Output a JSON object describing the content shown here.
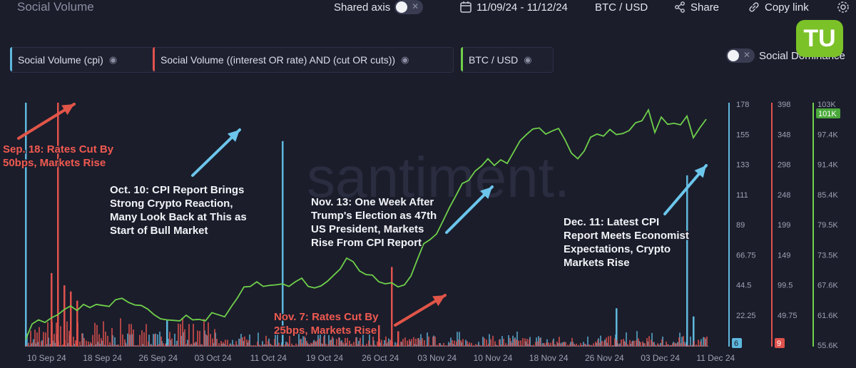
{
  "header": {
    "title": "Social Volume",
    "shared_axis_label": "Shared axis",
    "date_range": "11/09/24 - 11/12/24",
    "pair": "BTC / USD",
    "share_label": "Share",
    "copy_link_label": "Copy link"
  },
  "legend": {
    "items": [
      {
        "label": "Social Volume (cpi)",
        "color": "#5fb8dd"
      },
      {
        "label": "Social Volume ((interest OR rate) AND (cut OR cuts))",
        "color": "#e0524d"
      },
      {
        "label": "BTC / USD",
        "color": "#6fd04a"
      }
    ],
    "social_dominance_label": "Social Dominance"
  },
  "logo": {
    "text": "TU"
  },
  "watermark": "santiment.",
  "colors": {
    "background": "#1b1d2b",
    "cpi": "#5fb8dd",
    "rate": "#e0524d",
    "btc": "#6fd04a",
    "annotation_white": "#f2f3f7",
    "annotation_red": "#f05a50"
  },
  "chart_data": {
    "type": "line",
    "x_tick_labels": [
      "10 Sep 24",
      "18 Sep 24",
      "26 Sep 24",
      "03 Oct 24",
      "11 Oct 24",
      "19 Oct 24",
      "26 Oct 24",
      "03 Nov 24",
      "10 Nov 24",
      "18 Nov 24",
      "26 Nov 24",
      "03 Dec 24",
      "11 Dec 24"
    ],
    "axes": {
      "cpi": {
        "ticks": [
          "178",
          "155",
          "133",
          "111",
          "89",
          "66.75",
          "44.5",
          "22.25"
        ],
        "ylim": [
          0,
          178
        ],
        "current": "6"
      },
      "rate": {
        "ticks": [
          "398",
          "348",
          "298",
          "248",
          "199",
          "149",
          "99.5",
          "49.75"
        ],
        "ylim": [
          0,
          398
        ],
        "current": "9"
      },
      "btc": {
        "ticks": [
          "103K",
          "97.4K",
          "91.4K",
          "85.4K",
          "79.5K",
          "73.5K",
          "67.6K",
          "61.6K",
          "55.6K"
        ],
        "ylim": [
          55600,
          103000
        ],
        "current": "101K"
      }
    },
    "series": [
      {
        "name": "BTC / USD",
        "axis": "btc",
        "points": [
          [
            0,
            57000
          ],
          [
            1,
            60000
          ],
          [
            2,
            60800
          ],
          [
            3,
            60300
          ],
          [
            4,
            61200
          ],
          [
            5,
            61800
          ],
          [
            6,
            62800
          ],
          [
            7,
            63500
          ],
          [
            8,
            62600
          ],
          [
            9,
            63800
          ],
          [
            10,
            63200
          ],
          [
            11,
            63800
          ],
          [
            12,
            63600
          ],
          [
            13,
            63400
          ],
          [
            14,
            64700
          ],
          [
            15,
            65000
          ],
          [
            16,
            64200
          ],
          [
            17,
            63700
          ],
          [
            18,
            63600
          ],
          [
            19,
            62900
          ],
          [
            20,
            61800
          ],
          [
            21,
            61000
          ],
          [
            22,
            60800
          ],
          [
            23,
            60700
          ],
          [
            24,
            60600
          ],
          [
            25,
            61700
          ],
          [
            26,
            60800
          ],
          [
            27,
            60900
          ],
          [
            28,
            60600
          ],
          [
            29,
            62200
          ],
          [
            30,
            61800
          ],
          [
            31,
            61400
          ],
          [
            32,
            63300
          ],
          [
            33,
            65100
          ],
          [
            34,
            67200
          ],
          [
            35,
            67300
          ],
          [
            36,
            68200
          ],
          [
            37,
            67300
          ],
          [
            38,
            67500
          ],
          [
            39,
            67600
          ],
          [
            40,
            67800
          ],
          [
            41,
            67300
          ],
          [
            42,
            68200
          ],
          [
            43,
            68900
          ],
          [
            44,
            67300
          ],
          [
            45,
            67000
          ],
          [
            46,
            67400
          ],
          [
            47,
            68300
          ],
          [
            48,
            69500
          ],
          [
            49,
            70700
          ],
          [
            50,
            72800
          ],
          [
            51,
            72100
          ],
          [
            52,
            70300
          ],
          [
            53,
            69600
          ],
          [
            54,
            69500
          ],
          [
            55,
            68200
          ],
          [
            56,
            67800
          ],
          [
            57,
            68000
          ],
          [
            58,
            67200
          ],
          [
            59,
            67600
          ],
          [
            60,
            69300
          ],
          [
            61,
            72500
          ],
          [
            62,
            75600
          ],
          [
            63,
            76400
          ],
          [
            64,
            77500
          ],
          [
            65,
            80000
          ],
          [
            66,
            82600
          ],
          [
            67,
            84900
          ],
          [
            68,
            87300
          ],
          [
            69,
            87900
          ],
          [
            70,
            89700
          ],
          [
            71,
            90700
          ],
          [
            72,
            92100
          ],
          [
            73,
            90800
          ],
          [
            74,
            91900
          ],
          [
            75,
            91200
          ],
          [
            76,
            93400
          ],
          [
            77,
            95600
          ],
          [
            78,
            96800
          ],
          [
            79,
            97900
          ],
          [
            80,
            98100
          ],
          [
            81,
            96900
          ],
          [
            82,
            97500
          ],
          [
            83,
            98000
          ],
          [
            84,
            95800
          ],
          [
            85,
            93200
          ],
          [
            86,
            92100
          ],
          [
            87,
            93600
          ],
          [
            88,
            96300
          ],
          [
            89,
            96900
          ],
          [
            90,
            96500
          ],
          [
            91,
            97800
          ],
          [
            92,
            96800
          ],
          [
            93,
            97000
          ],
          [
            94,
            97600
          ],
          [
            95,
            99100
          ],
          [
            96,
            99500
          ],
          [
            97,
            101600
          ],
          [
            98,
            97200
          ],
          [
            99,
            100200
          ],
          [
            100,
            98800
          ],
          [
            101,
            99000
          ],
          [
            102,
            98700
          ],
          [
            103,
            100400
          ],
          [
            104,
            96200
          ],
          [
            105,
            98100
          ],
          [
            106,
            99800
          ]
        ]
      },
      {
        "name": "Social Volume (cpi)",
        "axis": "cpi",
        "spikes": [
          [
            0,
            178
          ],
          [
            22,
            19
          ],
          [
            40,
            150
          ],
          [
            92,
            28
          ],
          [
            103,
            125
          ],
          [
            104,
            22
          ]
        ]
      },
      {
        "name": "Social Volume ((interest OR rate) AND (cut OR cuts))",
        "axis": "rate",
        "spikes": [
          [
            5,
            398
          ],
          [
            4,
            120
          ],
          [
            6,
            100
          ],
          [
            7,
            90
          ],
          [
            8,
            75
          ],
          [
            57,
            130
          ],
          [
            55,
            35
          ],
          [
            58,
            25
          ]
        ]
      }
    ],
    "annotations": [
      {
        "text": [
          "Sep. 18: Rates Cut By",
          "50bps, Markets Rise"
        ],
        "color": "red"
      },
      {
        "text": [
          "Oct. 10: CPI Report Brings",
          "Strong Crypto Reaction,",
          "Many Look Back at This as",
          "Start of Bull Market"
        ],
        "color": "white"
      },
      {
        "text": [
          "Nov. 13: One Week After",
          "Trump's Election as 47th",
          "US President, Markets",
          "Rise From CPI Report"
        ],
        "color": "white"
      },
      {
        "text": [
          "Nov. 7: Rates Cut By",
          "25bps, Markets Rise"
        ],
        "color": "red"
      },
      {
        "text": [
          "Dec. 11: Latest CPI",
          "Report Meets Economist",
          "Expectations, Crypto",
          "Markets Rise"
        ],
        "color": "white"
      }
    ]
  }
}
